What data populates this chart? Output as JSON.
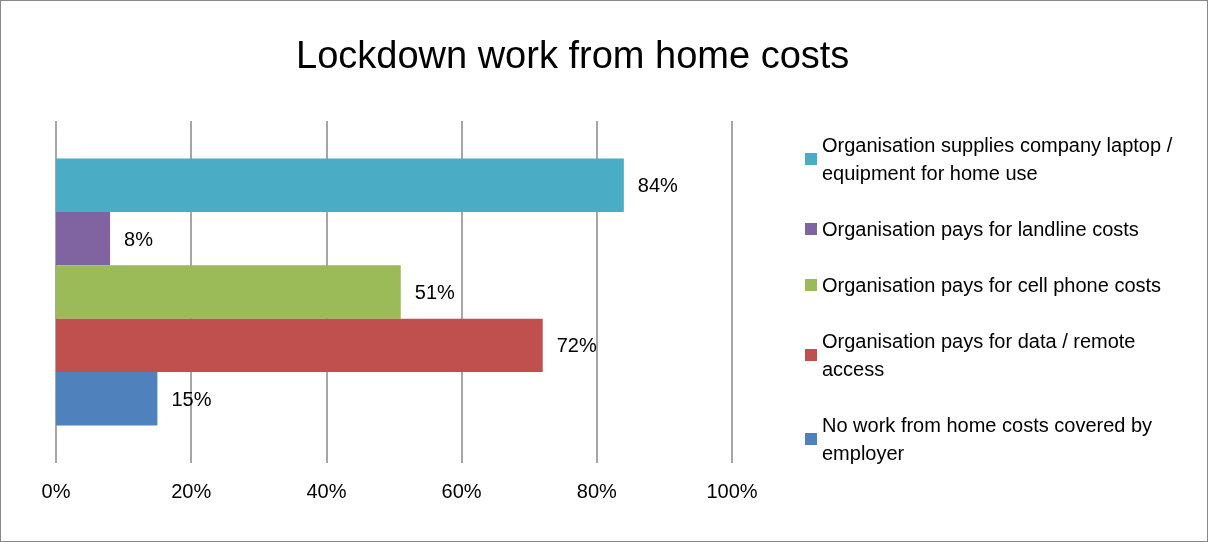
{
  "chart_data": {
    "type": "bar",
    "title": "Lockdown work from home costs",
    "orientation": "horizontal",
    "categories": [
      null
    ],
    "series": [
      {
        "name": "Organisation supplies company laptop / equipment for home use",
        "color": "#4bacc6",
        "values": [
          84
        ],
        "value_labels": [
          "84%"
        ]
      },
      {
        "name": "Organisation pays for landline costs",
        "color": "#8064a2",
        "values": [
          8
        ],
        "value_labels": [
          "8%"
        ]
      },
      {
        "name": "Organisation pays for cell phone costs",
        "color": "#9bbb59",
        "values": [
          51
        ],
        "value_labels": [
          "51%"
        ]
      },
      {
        "name": "Organisation pays for data / remote access",
        "color": "#c0504d",
        "values": [
          72
        ],
        "value_labels": [
          "72%"
        ]
      },
      {
        "name": "No work from home costs covered by employer",
        "color": "#4f81bd",
        "values": [
          15
        ],
        "value_labels": [
          "15%"
        ]
      }
    ],
    "xlim": [
      0,
      100
    ],
    "xticks": [
      {
        "value": 0,
        "label": "0%"
      },
      {
        "value": 20,
        "label": "20%"
      },
      {
        "value": 40,
        "label": "40%"
      },
      {
        "value": 60,
        "label": "60%"
      },
      {
        "value": 80,
        "label": "80%"
      },
      {
        "value": 100,
        "label": "100%"
      }
    ],
    "grid": "x",
    "legend": "right"
  }
}
